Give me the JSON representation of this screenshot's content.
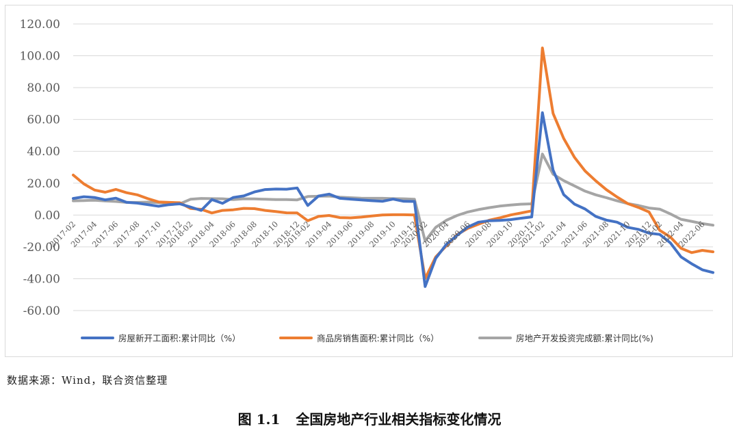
{
  "chart_data": {
    "type": "line",
    "title": "",
    "xlabel": "",
    "ylabel": "",
    "ylim": [
      -60,
      120
    ],
    "yticks": [
      -60,
      -40,
      -20,
      0,
      20,
      40,
      60,
      80,
      100,
      120
    ],
    "ytick_labels": [
      "-60.00",
      "-40.00",
      "-20.00",
      "0.00",
      "20.00",
      "40.00",
      "60.00",
      "80.00",
      "100.00",
      "120.00"
    ],
    "grid": true,
    "legend_position": "bottom",
    "x": [
      "2017-02",
      "2017-03",
      "2017-04",
      "2017-05",
      "2017-06",
      "2017-07",
      "2017-08",
      "2017-09",
      "2017-10",
      "2017-11",
      "2017-12",
      "2018-02",
      "2018-03",
      "2018-04",
      "2018-05",
      "2018-06",
      "2018-07",
      "2018-08",
      "2018-09",
      "2018-10",
      "2018-11",
      "2018-12",
      "2019-02",
      "2019-03",
      "2019-04",
      "2019-05",
      "2019-06",
      "2019-07",
      "2019-08",
      "2019-09",
      "2019-10",
      "2019-11",
      "2019-12",
      "2020-02",
      "2020-03",
      "2020-04",
      "2020-05",
      "2020-06",
      "2020-07",
      "2020-08",
      "2020-09",
      "2020-10",
      "2020-11",
      "2020-12",
      "2021-02",
      "2021-03",
      "2021-04",
      "2021-05",
      "2021-06",
      "2021-07",
      "2021-08",
      "2021-09",
      "2021-10",
      "2021-11",
      "2021-12",
      "2022-02",
      "2022-03",
      "2022-04",
      "2022-05",
      "2022-06",
      "2022-07"
    ],
    "xtick_labels": [
      "2017-02",
      "2017-04",
      "2017-06",
      "2017-08",
      "2017-10",
      "2017-12",
      "2018-02",
      "2018-04",
      "2018-06",
      "2018-08",
      "2018-10",
      "2018-12",
      "2019-02",
      "2019-04",
      "2019-06",
      "2019-08",
      "2019-10",
      "2019-12",
      "2020-02",
      "2020-04",
      "2020-06",
      "2020-08",
      "2020-10",
      "2020-12",
      "2021-02",
      "2021-04",
      "2021-06",
      "2021-08",
      "2021-10",
      "2021-12",
      "2022-02",
      "2022-04",
      "2022-06"
    ],
    "series": [
      {
        "name": "房屋新开工面积:累计同比（%）",
        "color": "#4472c4",
        "values": [
          10.4,
          11.5,
          11.0,
          9.5,
          10.6,
          8.0,
          7.5,
          6.5,
          5.5,
          6.5,
          7.0,
          5.0,
          2.9,
          9.7,
          7.3,
          11.0,
          12.0,
          14.5,
          16.0,
          16.3,
          16.2,
          17.0,
          6.0,
          11.9,
          13.1,
          10.5,
          10.0,
          9.5,
          9.0,
          8.6,
          10.0,
          8.6,
          8.5,
          -44.9,
          -27.2,
          -18.4,
          -12.8,
          -7.6,
          -4.5,
          -3.6,
          -3.4,
          -2.9,
          -2.0,
          -1.2,
          64.3,
          28.2,
          12.8,
          6.9,
          3.8,
          -0.9,
          -3.2,
          -4.5,
          -7.7,
          -9.0,
          -11.4,
          -12.2,
          -17.5,
          -26.3,
          -30.6,
          -34.4,
          -36.1
        ]
      },
      {
        "name": "商品房销售面积:累计同比（%）",
        "color": "#ed7d31",
        "values": [
          25.1,
          19.5,
          15.7,
          14.3,
          16.1,
          14.0,
          12.7,
          10.3,
          8.2,
          7.9,
          7.7,
          4.1,
          3.6,
          1.3,
          2.9,
          3.3,
          4.2,
          4.0,
          2.9,
          2.2,
          1.4,
          1.3,
          -3.6,
          -0.9,
          -0.3,
          -1.6,
          -1.8,
          -1.3,
          -0.6,
          0.0,
          0.2,
          0.2,
          0.0,
          -39.9,
          -26.3,
          -19.3,
          -12.3,
          -8.4,
          -5.8,
          -3.3,
          -1.8,
          0.0,
          1.3,
          2.6,
          104.9,
          63.8,
          48.1,
          36.3,
          27.7,
          21.5,
          15.9,
          11.3,
          7.2,
          4.8,
          1.9,
          -9.6,
          -13.8,
          -20.9,
          -23.6,
          -22.2,
          -23.1
        ]
      },
      {
        "name": "房地产开发投资完成额:累计同比(%)",
        "color": "#a5a5a5",
        "values": [
          8.9,
          9.1,
          9.3,
          8.8,
          8.5,
          7.9,
          7.9,
          8.1,
          7.8,
          7.5,
          7.0,
          9.9,
          10.4,
          10.3,
          10.2,
          9.7,
          10.2,
          10.1,
          9.9,
          9.7,
          9.7,
          9.5,
          11.6,
          11.8,
          11.9,
          11.2,
          10.9,
          10.6,
          10.5,
          10.5,
          10.3,
          10.2,
          9.9,
          -16.3,
          -7.7,
          -3.3,
          -0.3,
          1.9,
          3.4,
          4.6,
          5.6,
          6.3,
          6.8,
          7.0,
          38.3,
          25.6,
          21.6,
          18.3,
          15.0,
          12.7,
          10.9,
          8.9,
          7.2,
          6.0,
          4.4,
          3.7,
          0.7,
          -2.7,
          -4.0,
          -5.4,
          -6.4
        ]
      }
    ]
  },
  "source_note": "数据来源：Wind，联合资信整理",
  "caption": {
    "number": "图 1.1",
    "text": "全国房地产行业相关指标变化情况"
  }
}
